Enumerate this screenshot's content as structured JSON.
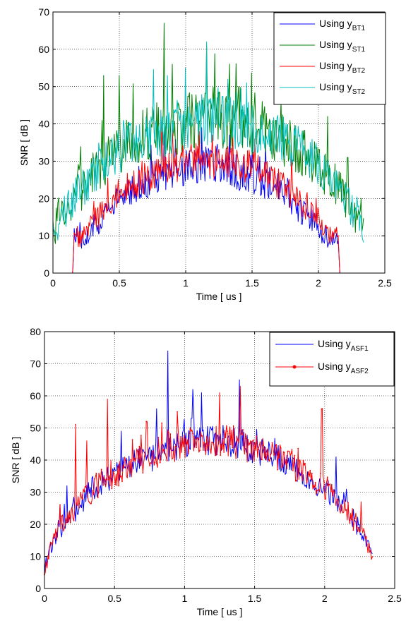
{
  "chart_data": [
    {
      "type": "line",
      "xlabel": "Time [ us ]",
      "ylabel": "SNR [ dB ]",
      "xlim": [
        0,
        2.5
      ],
      "ylim": [
        0,
        70
      ],
      "xticks": [
        "0",
        "0.5",
        "1",
        "1.5",
        "2",
        "2.5"
      ],
      "yticks": [
        "0",
        "10",
        "20",
        "30",
        "40",
        "50",
        "60",
        "70"
      ],
      "grid": true,
      "legend_position": "top-right",
      "x_range": [
        0,
        2.34
      ],
      "series": [
        {
          "legend_prefix": "Using y",
          "legend_sub": "BT1",
          "color": "#0000ff",
          "x": [
            0,
            0.15,
            0.16,
            0.2,
            0.3,
            0.4,
            0.5,
            0.6,
            0.7,
            0.8,
            0.9,
            1.0,
            1.1,
            1.2,
            1.3,
            1.4,
            1.5,
            1.6,
            1.7,
            1.8,
            1.9,
            2.0,
            2.1,
            2.15,
            2.16,
            2.34
          ],
          "values": [
            0,
            0,
            11,
            8,
            12,
            16,
            20,
            22,
            24,
            26,
            27,
            28,
            29,
            29,
            28,
            27,
            26,
            24,
            22,
            19,
            16,
            12,
            8,
            10,
            0,
            0
          ],
          "noise": [
            0,
            0,
            4,
            4,
            5,
            5,
            5,
            6,
            6,
            7,
            7,
            7,
            7,
            7,
            7,
            7,
            7,
            6,
            6,
            6,
            5,
            5,
            4,
            3,
            0,
            0
          ],
          "spikes": [
            [
              0.84,
              38
            ],
            [
              1.12,
              39
            ],
            [
              1.33,
              37
            ],
            [
              1.6,
              35
            ]
          ]
        },
        {
          "legend_prefix": "Using y",
          "legend_sub": "ST1",
          "color": "#008000",
          "x": [
            0,
            0.1,
            0.2,
            0.3,
            0.4,
            0.5,
            0.6,
            0.7,
            0.8,
            0.9,
            1.0,
            1.1,
            1.2,
            1.3,
            1.4,
            1.5,
            1.6,
            1.7,
            1.8,
            1.9,
            2.0,
            2.1,
            2.2,
            2.3,
            2.34
          ],
          "values": [
            12,
            17,
            22,
            26,
            30,
            33,
            35,
            37,
            38,
            39,
            40,
            41,
            41,
            41,
            40,
            39,
            38,
            36,
            34,
            32,
            29,
            25,
            20,
            14,
            12
          ],
          "noise": [
            7,
            8,
            9,
            9,
            10,
            10,
            10,
            11,
            11,
            11,
            11,
            11,
            11,
            11,
            11,
            11,
            10,
            10,
            10,
            9,
            9,
            9,
            8,
            7,
            6
          ],
          "spikes": [
            [
              0.38,
              53
            ],
            [
              0.5,
              53
            ],
            [
              0.84,
              67
            ],
            [
              0.9,
              56
            ],
            [
              1.16,
              61
            ],
            [
              1.4,
              50
            ],
            [
              1.72,
              46
            ],
            [
              2.07,
              42
            ],
            [
              2.22,
              31
            ],
            [
              2.32,
              20
            ]
          ]
        },
        {
          "legend_prefix": "Using y",
          "legend_sub": "BT2",
          "color": "#ff0000",
          "x": [
            0,
            0.15,
            0.16,
            0.2,
            0.3,
            0.4,
            0.5,
            0.6,
            0.7,
            0.8,
            0.9,
            1.0,
            1.1,
            1.2,
            1.3,
            1.4,
            1.5,
            1.6,
            1.7,
            1.8,
            1.9,
            2.0,
            2.1,
            2.15,
            2.16,
            2.34
          ],
          "values": [
            0,
            0,
            11,
            9,
            13,
            18,
            22,
            24,
            26,
            28,
            29,
            30,
            30,
            30,
            30,
            29,
            28,
            26,
            24,
            21,
            18,
            14,
            10,
            11,
            0,
            0
          ],
          "noise": [
            0,
            0,
            4,
            4,
            5,
            5,
            6,
            6,
            7,
            7,
            7,
            7,
            7,
            7,
            7,
            7,
            7,
            6,
            6,
            6,
            5,
            5,
            4,
            3,
            0,
            0
          ],
          "spikes": [
            [
              0.82,
              40
            ],
            [
              0.9,
              39
            ],
            [
              1.1,
              38
            ],
            [
              1.2,
              37
            ],
            [
              1.52,
              36
            ],
            [
              1.8,
              32
            ]
          ]
        },
        {
          "legend_prefix": "Using y",
          "legend_sub": "ST2",
          "color": "#00bfbf",
          "x": [
            0,
            0.1,
            0.2,
            0.3,
            0.4,
            0.5,
            0.6,
            0.7,
            0.8,
            0.9,
            1.0,
            1.1,
            1.2,
            1.3,
            1.4,
            1.5,
            1.6,
            1.7,
            1.8,
            1.9,
            2.0,
            2.1,
            2.2,
            2.3,
            2.34
          ],
          "values": [
            11,
            17,
            22,
            26,
            30,
            33,
            35,
            37,
            38,
            39,
            40,
            41,
            41,
            41,
            40,
            39,
            38,
            36,
            34,
            32,
            29,
            25,
            20,
            14,
            12
          ],
          "noise": [
            6,
            7,
            8,
            8,
            9,
            9,
            9,
            10,
            10,
            10,
            10,
            10,
            10,
            10,
            10,
            10,
            9,
            9,
            9,
            8,
            8,
            8,
            7,
            6,
            6
          ],
          "spikes": [
            [
              0.86,
              53
            ],
            [
              1.0,
              55
            ],
            [
              1.16,
              62
            ],
            [
              1.32,
              52
            ],
            [
              1.46,
              51
            ]
          ]
        }
      ]
    },
    {
      "type": "line",
      "xlabel": "Time [ us ]",
      "ylabel": "SNR [ dB ]",
      "xlim": [
        0,
        2.5
      ],
      "ylim": [
        0,
        80
      ],
      "xticks": [
        "0",
        "0.5",
        "1",
        "1.5",
        "2",
        "2.5"
      ],
      "yticks": [
        "0",
        "10",
        "20",
        "30",
        "40",
        "50",
        "60",
        "70",
        "80"
      ],
      "grid": true,
      "legend_position": "top-right",
      "x_range": [
        0,
        2.34
      ],
      "series": [
        {
          "legend_prefix": "Using y",
          "legend_sub": "ASF1",
          "color": "#0000ff",
          "marker": "none",
          "x": [
            0,
            0.05,
            0.1,
            0.2,
            0.3,
            0.4,
            0.5,
            0.6,
            0.7,
            0.8,
            0.9,
            1.0,
            1.1,
            1.2,
            1.3,
            1.4,
            1.5,
            1.6,
            1.7,
            1.8,
            1.9,
            2.0,
            2.1,
            2.2,
            2.3,
            2.34
          ],
          "values": [
            6,
            13,
            18,
            24,
            29,
            33,
            35,
            38,
            40,
            42,
            44,
            45,
            46,
            46,
            46,
            45,
            43,
            42,
            40,
            37,
            34,
            31,
            27,
            22,
            14,
            10
          ],
          "noise": [
            3,
            4,
            5,
            6,
            6,
            6,
            6,
            6,
            7,
            7,
            7,
            7,
            7,
            7,
            7,
            7,
            7,
            6,
            6,
            6,
            6,
            6,
            5,
            5,
            4,
            3
          ],
          "spikes": [
            [
              0.88,
              74
            ],
            [
              0.8,
              56
            ],
            [
              1.06,
              62
            ],
            [
              1.12,
              61
            ],
            [
              1.39,
              65
            ],
            [
              1.05,
              53
            ],
            [
              2.08,
              41
            ],
            [
              0.55,
              49
            ],
            [
              0.16,
              32
            ]
          ]
        },
        {
          "legend_prefix": "Using y",
          "legend_sub": "ASF2",
          "color": "#ff0000",
          "marker": "dot",
          "x": [
            0,
            0.05,
            0.1,
            0.2,
            0.3,
            0.4,
            0.5,
            0.6,
            0.7,
            0.8,
            0.9,
            1.0,
            1.1,
            1.2,
            1.3,
            1.4,
            1.5,
            1.6,
            1.7,
            1.8,
            1.9,
            2.0,
            2.1,
            2.2,
            2.3,
            2.34
          ],
          "values": [
            6,
            13,
            18,
            24,
            29,
            33,
            35,
            38,
            40,
            42,
            44,
            45,
            46,
            46,
            46,
            45,
            43,
            42,
            40,
            37,
            34,
            31,
            27,
            22,
            14,
            8
          ],
          "noise": [
            3,
            4,
            5,
            6,
            6,
            6,
            6,
            6,
            7,
            7,
            7,
            7,
            7,
            7,
            7,
            7,
            7,
            6,
            6,
            6,
            6,
            6,
            5,
            5,
            4,
            3
          ],
          "spikes": [
            [
              0.22,
              51
            ],
            [
              0.3,
              46
            ],
            [
              0.45,
              59
            ],
            [
              0.73,
              52
            ],
            [
              0.95,
              55
            ],
            [
              1.4,
              63
            ],
            [
              1.25,
              61
            ],
            [
              1.98,
              56
            ],
            [
              2.26,
              27
            ],
            [
              0.11,
              26
            ]
          ]
        }
      ]
    }
  ]
}
